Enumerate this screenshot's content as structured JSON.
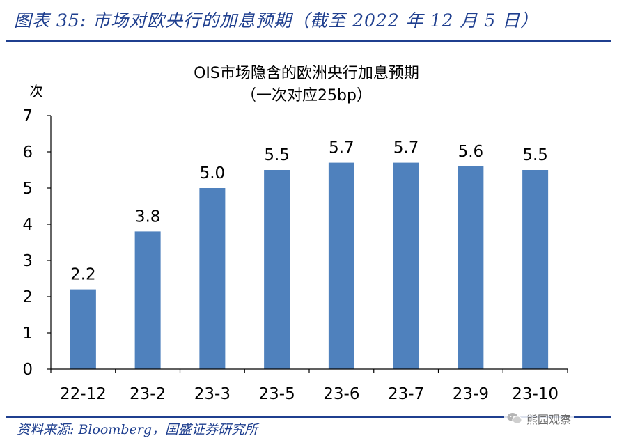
{
  "header": {
    "figure_title": "图表 35:  市场对欧央行的加息预期（截至 2022 年 12 月 5 日）"
  },
  "footer": {
    "source": "资料来源:  Bloomberg，国盛证券研究所",
    "watermark": "熊园观察"
  },
  "colors": {
    "bar": "#4f81bd",
    "brand": "#1f3f8f"
  },
  "chart_data": {
    "type": "bar",
    "title": "OIS市场隐含的欧洲央行加息预期",
    "subtitle": "（一次对应25bp）",
    "ylabel": "次",
    "xlabel": "",
    "categories": [
      "22-12",
      "23-2",
      "23-3",
      "23-5",
      "23-6",
      "23-7",
      "23-9",
      "23-10"
    ],
    "values": [
      2.2,
      3.8,
      5.0,
      5.5,
      5.7,
      5.7,
      5.6,
      5.5
    ],
    "data_labels": [
      "2.2",
      "3.8",
      "5.0",
      "5.5",
      "5.7",
      "5.7",
      "5.6",
      "5.5"
    ],
    "ylim": [
      0,
      7
    ],
    "yticks": [
      0,
      1,
      2,
      3,
      4,
      5,
      6,
      7
    ],
    "grid": false,
    "legend": "none"
  }
}
